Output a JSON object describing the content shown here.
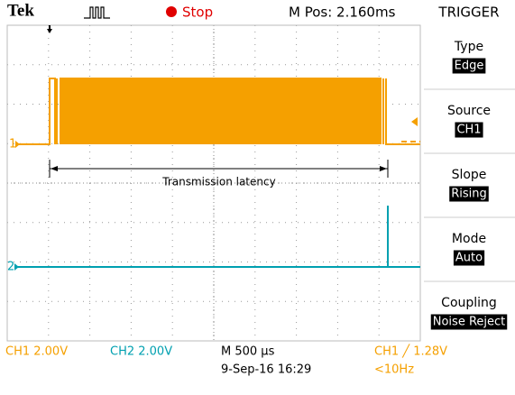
{
  "header": {
    "brand": "Tek",
    "status": "Stop",
    "position": "M Pos: 2.160ms",
    "menu_title": "TRIGGER"
  },
  "menu": [
    {
      "label": "Type",
      "value": "Edge"
    },
    {
      "label": "Source",
      "value": "CH1"
    },
    {
      "label": "Slope",
      "value": "Rising"
    },
    {
      "label": "Mode",
      "value": "Auto"
    },
    {
      "label": "Coupling",
      "value": "Noise Reject"
    }
  ],
  "screen": {
    "annotation": "Transmission latency",
    "ch1_marker": "1",
    "ch2_marker": "2"
  },
  "footer": {
    "ch1_scale": "CH1  2.00V",
    "ch2_scale": "CH2  2.00V",
    "timebase": "M 500 µs",
    "date": "9-Sep-16 16:29",
    "trigger": "CH1 ╱ 1.28V",
    "frequency": "<10Hz"
  }
}
